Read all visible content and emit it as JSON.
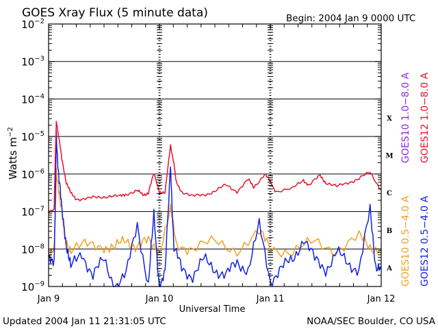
{
  "chart_data": {
    "type": "line",
    "title": "GOES Xray Flux (5 minute data)",
    "begin_text": "Begin:  2004 Jan 9 0000 UTC",
    "xlabel": "Universal Time",
    "ylabel_main": "Watts m",
    "ylabel_exp": "−2",
    "x_ticks": [
      "Jan 9",
      "Jan 10",
      "Jan 11",
      "Jan 12"
    ],
    "x_range_days": [
      0,
      3
    ],
    "y_scale": "log",
    "ylim": [
      1e-09,
      0.01
    ],
    "y_tick_exponents": [
      "−2",
      "−3",
      "−4",
      "−5",
      "−6",
      "−7",
      "−8",
      "−9"
    ],
    "y_tick_base": "10",
    "class_labels": [
      "X",
      "M",
      "C",
      "B",
      "A"
    ],
    "footer_left": "Updated 2004 Jan 11 21:31:05 UTC",
    "footer_right": "NOAA/SEC Boulder, CO USA",
    "legend_position": "right, vertical",
    "series": [
      {
        "name": "GOES10 1.0−8.0 A",
        "color": "#8a2be2",
        "style": "overplotted"
      },
      {
        "name": "GOES12 1.0−8.0 A",
        "color": "#e8102a",
        "points": [
          [
            0,
            1e-07
          ],
          [
            0.05,
            1.2e-07
          ],
          [
            0.06,
            2.5e-06
          ],
          [
            0.07,
            2.8e-05
          ],
          [
            0.09,
            1e-05
          ],
          [
            0.12,
            2.5e-06
          ],
          [
            0.16,
            6e-07
          ],
          [
            0.2,
            3e-07
          ],
          [
            0.25,
            2.2e-07
          ],
          [
            0.35,
            2.2e-07
          ],
          [
            0.45,
            2.4e-07
          ],
          [
            0.55,
            2.6e-07
          ],
          [
            0.65,
            2.5e-07
          ],
          [
            0.7,
            3e-07
          ],
          [
            0.8,
            3.5e-07
          ],
          [
            0.85,
            2.8e-07
          ],
          [
            0.9,
            3.2e-07
          ],
          [
            0.95,
            1e-06
          ],
          [
            1.0,
            3.5e-07
          ],
          [
            1.05,
            3e-07
          ],
          [
            1.1,
            6e-06
          ],
          [
            1.13,
            2e-06
          ],
          [
            1.15,
            6e-07
          ],
          [
            1.2,
            3.5e-07
          ],
          [
            1.3,
            2.5e-07
          ],
          [
            1.4,
            2.8e-07
          ],
          [
            1.5,
            3.5e-07
          ],
          [
            1.6,
            5e-07
          ],
          [
            1.7,
            3.5e-07
          ],
          [
            1.8,
            7e-07
          ],
          [
            1.85,
            4.5e-07
          ],
          [
            1.95,
            1e-06
          ],
          [
            2.0,
            6e-07
          ],
          [
            2.05,
            3.5e-07
          ],
          [
            2.2,
            4e-07
          ],
          [
            2.3,
            7e-07
          ],
          [
            2.35,
            5e-07
          ],
          [
            2.45,
            9e-07
          ],
          [
            2.5,
            6e-07
          ],
          [
            2.6,
            4.5e-07
          ],
          [
            2.7,
            6e-07
          ],
          [
            2.8,
            7.5e-07
          ],
          [
            2.9,
            1.1e-06
          ],
          [
            3.0,
            3.8e-07
          ]
        ]
      },
      {
        "name": "GOES10 0.5−4.0 A",
        "color": "#f0a020",
        "points": [
          [
            0,
            6e-09
          ],
          [
            0.05,
            8e-09
          ],
          [
            0.07,
            1.5e-06
          ],
          [
            0.1,
            2e-07
          ],
          [
            0.15,
            2e-08
          ],
          [
            0.2,
            1e-08
          ],
          [
            0.35,
            1.2e-08
          ],
          [
            0.5,
            1.3e-08
          ],
          [
            0.6,
            1e-08
          ],
          [
            0.7,
            1.8e-08
          ],
          [
            0.8,
            1.2e-08
          ],
          [
            0.9,
            1.5e-08
          ],
          [
            1.0,
            1e-08
          ],
          [
            1.1,
            1e-07
          ],
          [
            1.15,
            1.5e-08
          ],
          [
            1.3,
            1e-08
          ],
          [
            1.5,
            1.5e-08
          ],
          [
            1.7,
            1e-08
          ],
          [
            1.9,
            2.5e-08
          ],
          [
            2.0,
            1.2e-08
          ],
          [
            2.2,
            8e-09
          ],
          [
            2.4,
            1.5e-08
          ],
          [
            2.6,
            1e-08
          ],
          [
            2.8,
            2e-08
          ],
          [
            2.9,
            1.2e-08
          ],
          [
            3.0,
            1e-08
          ]
        ]
      },
      {
        "name": "GOES12 0.5−4.0 A",
        "color": "#1020e0",
        "points": [
          [
            0,
            5e-09
          ],
          [
            0.05,
            6e-09
          ],
          [
            0.06,
            1e-07
          ],
          [
            0.07,
            1.2e-05
          ],
          [
            0.09,
            1e-06
          ],
          [
            0.12,
            1e-07
          ],
          [
            0.16,
            1.5e-08
          ],
          [
            0.2,
            3e-09
          ],
          [
            0.3,
            8e-09
          ],
          [
            0.4,
            2e-09
          ],
          [
            0.5,
            5e-09
          ],
          [
            0.6,
            1e-09
          ],
          [
            0.7,
            2e-09
          ],
          [
            0.8,
            5e-08
          ],
          [
            0.9,
            1e-09
          ],
          [
            0.95,
            8e-08
          ],
          [
            1.0,
            1e-09
          ],
          [
            1.05,
            2e-09
          ],
          [
            1.1,
            2e-06
          ],
          [
            1.13,
            1e-08
          ],
          [
            1.2,
            3e-09
          ],
          [
            1.3,
            2e-09
          ],
          [
            1.4,
            5e-09
          ],
          [
            1.5,
            3e-09
          ],
          [
            1.6,
            2e-09
          ],
          [
            1.7,
            4e-09
          ],
          [
            1.8,
            3e-09
          ],
          [
            1.9,
            4e-08
          ],
          [
            2.0,
            1.5e-09
          ],
          [
            2.1,
            3e-09
          ],
          [
            2.2,
            5e-09
          ],
          [
            2.3,
            2e-08
          ],
          [
            2.4,
            5e-09
          ],
          [
            2.5,
            3e-09
          ],
          [
            2.6,
            8e-09
          ],
          [
            2.7,
            4e-09
          ],
          [
            2.8,
            3e-09
          ],
          [
            2.9,
            1e-07
          ],
          [
            2.95,
            4e-09
          ],
          [
            3.0,
            3e-09
          ]
        ]
      }
    ]
  }
}
